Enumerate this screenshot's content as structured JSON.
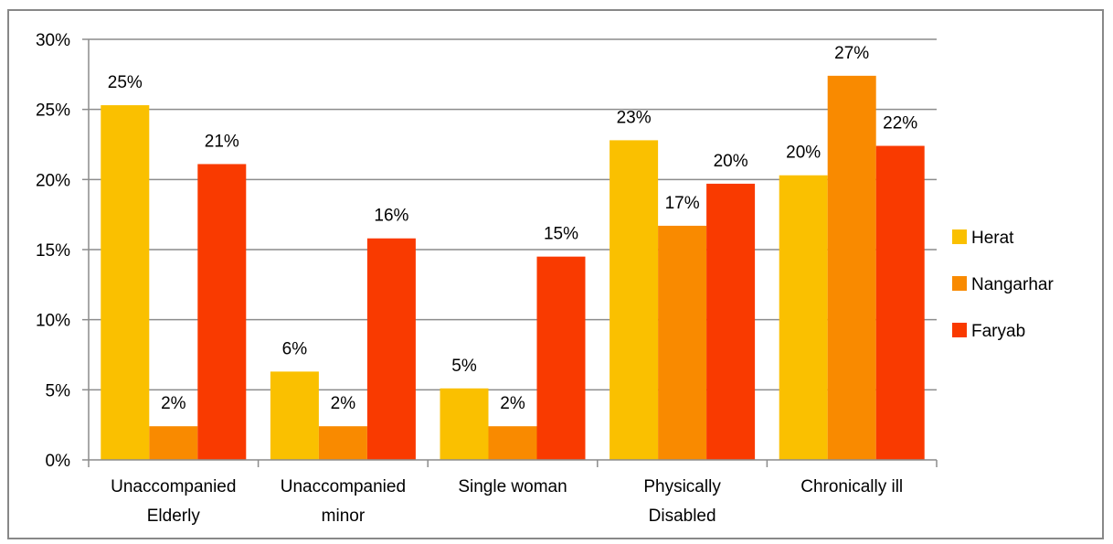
{
  "chart_data": {
    "type": "bar",
    "title": "",
    "xlabel": "",
    "ylabel": "",
    "ylim": [
      0,
      30
    ],
    "yticks": [
      "0%",
      "5%",
      "10%",
      "15%",
      "20%",
      "25%",
      "30%"
    ],
    "ytick_values": [
      0,
      5,
      10,
      15,
      20,
      25,
      30
    ],
    "categories": [
      [
        "Unaccompanied",
        "Elderly"
      ],
      [
        "Unaccompanied",
        "minor"
      ],
      [
        "Single woman"
      ],
      [
        "Physically",
        "Disabled"
      ],
      [
        "Chronically ill"
      ]
    ],
    "series": [
      {
        "name": "Herat",
        "color": "#FAC000",
        "values": [
          25.3,
          6.3,
          5.1,
          22.8,
          20.3
        ],
        "labels": [
          "25%",
          "6%",
          "5%",
          "23%",
          "20%"
        ]
      },
      {
        "name": "Nangarhar",
        "color": "#F98A00",
        "values": [
          2.4,
          2.4,
          2.4,
          16.7,
          27.4
        ],
        "labels": [
          "2%",
          "2%",
          "2%",
          "17%",
          "27%"
        ]
      },
      {
        "name": "Faryab",
        "color": "#F93A00",
        "values": [
          21.1,
          15.8,
          14.5,
          19.7,
          22.4
        ],
        "labels": [
          "21%",
          "16%",
          "15%",
          "20%",
          "22%"
        ]
      }
    ],
    "grid": true,
    "legend": "right"
  }
}
